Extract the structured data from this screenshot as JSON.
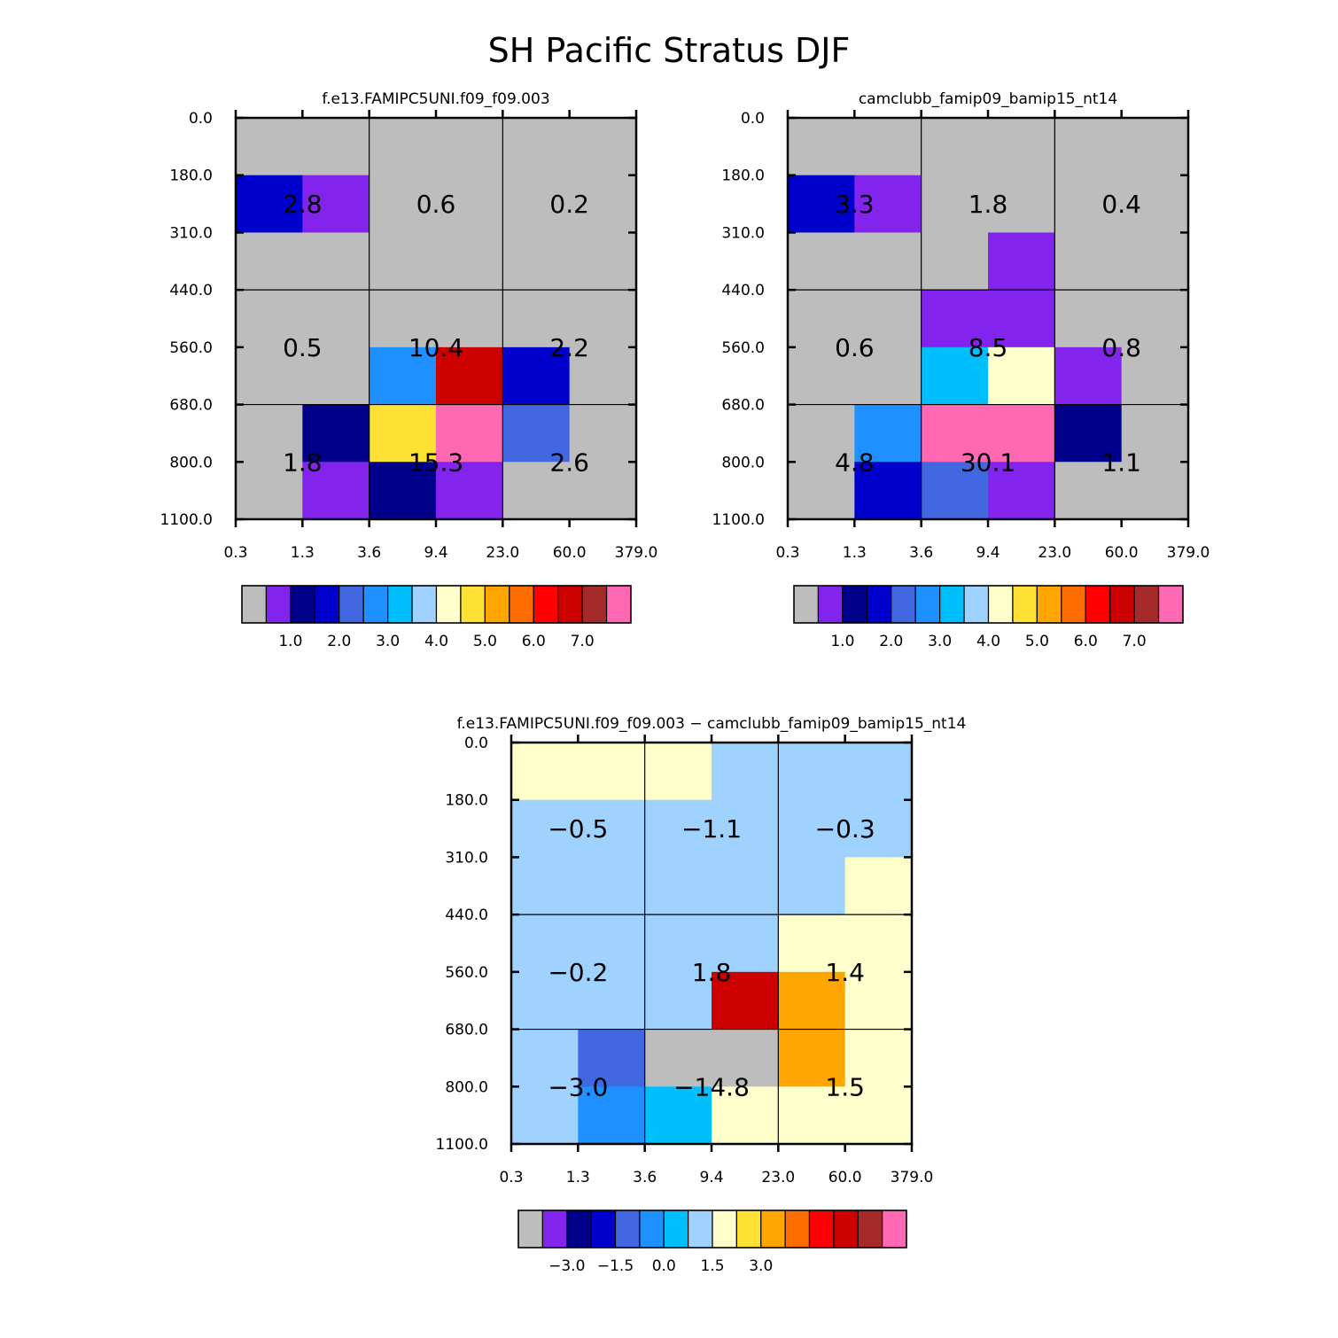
{
  "figure_title": "SH Pacific Stratus DJF",
  "colors": {
    "ref": [
      "#bdbdbd",
      "#8224ee",
      "#00008b",
      "#0000cd",
      "#4168e1",
      "#1e90ff",
      "#00bfff",
      "#a0d2ff",
      "#ffffcc",
      "#ffe135",
      "#ffa500",
      "#ff6d00",
      "#ff0000",
      "#cd0000",
      "#a52a2a",
      "#ff69b4"
    ],
    "diff": [
      "#bdbdbd",
      "#8224ee",
      "#00008b",
      "#0000cd",
      "#4168e1",
      "#1e90ff",
      "#00bfff",
      "#a0d2ff",
      "#ffffcc",
      "#ffe135",
      "#ffa500",
      "#ff6d00",
      "#ff0000",
      "#cd0000",
      "#a52a2a",
      "#ff69b4"
    ]
  },
  "chart_data": [
    {
      "type": "heatmap",
      "id": "left",
      "title": "f.e13.FAMIPC5UNI.f09_f09.003",
      "x_ticks": [
        "0.3",
        "1.3",
        "3.6",
        "9.4",
        "23.0",
        "60.0",
        "379.0"
      ],
      "y_ticks": [
        "0.0",
        "180.0",
        "310.0",
        "440.0",
        "560.0",
        "680.0",
        "800.0",
        "1100.0"
      ],
      "cells": [
        [
          0,
          0,
          0,
          0,
          0,
          0
        ],
        [
          3,
          1,
          0,
          0,
          0,
          0
        ],
        [
          0,
          0,
          0,
          0,
          0,
          0
        ],
        [
          0,
          0,
          0,
          0,
          0,
          0
        ],
        [
          0,
          0,
          5,
          13,
          3,
          0
        ],
        [
          0,
          2,
          9,
          15,
          4,
          0
        ],
        [
          0,
          1,
          2,
          1,
          0,
          0
        ]
      ],
      "box_values": [
        [
          "2.8",
          "0.6",
          "0.2"
        ],
        [
          "0.5",
          "10.4",
          "2.2"
        ],
        [
          "1.8",
          "15.3",
          "2.6"
        ]
      ],
      "colorbar_labels": [
        "1.0",
        "2.0",
        "3.0",
        "4.0",
        "5.0",
        "6.0",
        "7.0"
      ],
      "palette": "ref"
    },
    {
      "type": "heatmap",
      "id": "right",
      "title": "camclubb_famip09_bamip15_nt14",
      "x_ticks": [
        "0.3",
        "1.3",
        "3.6",
        "9.4",
        "23.0",
        "60.0",
        "379.0"
      ],
      "y_ticks": [
        "0.0",
        "180.0",
        "310.0",
        "440.0",
        "560.0",
        "680.0",
        "800.0",
        "1100.0"
      ],
      "cells": [
        [
          0,
          0,
          0,
          0,
          0,
          0
        ],
        [
          3,
          1,
          0,
          0,
          0,
          0
        ],
        [
          0,
          0,
          0,
          1,
          0,
          0
        ],
        [
          0,
          0,
          1,
          1,
          0,
          0
        ],
        [
          0,
          0,
          6,
          8,
          1,
          0
        ],
        [
          0,
          5,
          15,
          15,
          2,
          0
        ],
        [
          0,
          3,
          4,
          1,
          0,
          0
        ]
      ],
      "box_values": [
        [
          "3.3",
          "1.8",
          "0.4"
        ],
        [
          "0.6",
          "8.5",
          "0.8"
        ],
        [
          "4.8",
          "30.1",
          "1.1"
        ]
      ],
      "colorbar_labels": [
        "1.0",
        "2.0",
        "3.0",
        "4.0",
        "5.0",
        "6.0",
        "7.0"
      ],
      "palette": "ref"
    },
    {
      "type": "heatmap",
      "id": "diff",
      "title": "f.e13.FAMIPC5UNI.f09_f09.003 − camclubb_famip09_bamip15_nt14",
      "x_ticks": [
        "0.3",
        "1.3",
        "3.6",
        "9.4",
        "23.0",
        "60.0",
        "379.0"
      ],
      "y_ticks": [
        "0.0",
        "180.0",
        "310.0",
        "440.0",
        "560.0",
        "680.0",
        "800.0",
        "1100.0"
      ],
      "cells": [
        [
          8,
          8,
          8,
          7,
          7,
          7
        ],
        [
          7,
          7,
          7,
          7,
          7,
          7
        ],
        [
          7,
          7,
          7,
          7,
          7,
          8
        ],
        [
          7,
          7,
          7,
          7,
          8,
          8
        ],
        [
          7,
          7,
          7,
          13,
          10,
          8
        ],
        [
          7,
          4,
          0,
          0,
          10,
          8
        ],
        [
          7,
          5,
          6,
          8,
          8,
          8
        ]
      ],
      "box_values": [
        [
          "−0.5",
          "−1.1",
          "−0.3"
        ],
        [
          "−0.2",
          "1.8",
          "1.4"
        ],
        [
          "−3.0",
          "−14.8",
          "1.5"
        ]
      ],
      "colorbar_labels": [
        "−3.0",
        "−1.5",
        "0.0",
        "1.5",
        "3.0"
      ],
      "colorbar_label_positions": [
        2,
        4,
        6,
        8,
        10
      ],
      "palette": "diff"
    }
  ]
}
